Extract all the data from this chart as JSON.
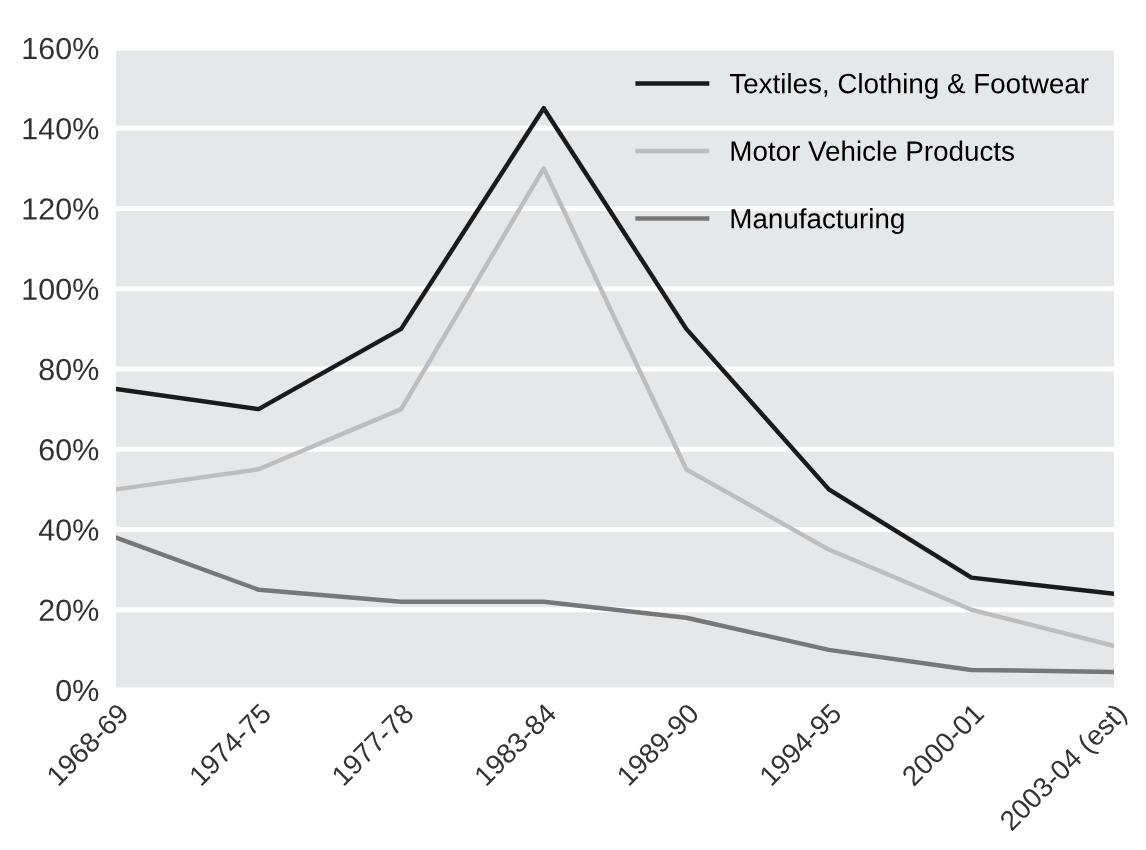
{
  "chart_data": {
    "type": "line",
    "categories": [
      "1968-69",
      "1974-75",
      "1977-78",
      "1983-84",
      "1989-90",
      "1994-95",
      "2000-01",
      "2003-04 (est)"
    ],
    "series": [
      {
        "name": "Textiles, Clothing & Footwear",
        "color": "#1a1a1a",
        "values": [
          75,
          70,
          90,
          145,
          90,
          50,
          28,
          24
        ]
      },
      {
        "name": "Motor Vehicle Products",
        "color": "#bdbdbd",
        "values": [
          50,
          55,
          70,
          130,
          55,
          35,
          20,
          11
        ]
      },
      {
        "name": "Manufacturing",
        "color": "#777777",
        "values": [
          38,
          25,
          22,
          22,
          18,
          10,
          5,
          4.5
        ]
      }
    ],
    "ylim": [
      0,
      160
    ],
    "yticks": [
      {
        "value": 0,
        "label": "0%"
      },
      {
        "value": 20,
        "label": "20%"
      },
      {
        "value": 40,
        "label": "40%"
      },
      {
        "value": 60,
        "label": "60%"
      },
      {
        "value": 80,
        "label": "80%"
      },
      {
        "value": 100,
        "label": "100%"
      },
      {
        "value": 120,
        "label": "120%"
      },
      {
        "value": 140,
        "label": "140%"
      },
      {
        "value": 160,
        "label": "160%"
      }
    ],
    "grid": "y",
    "legend": "top right",
    "marker": "none",
    "line_style": "solid"
  }
}
